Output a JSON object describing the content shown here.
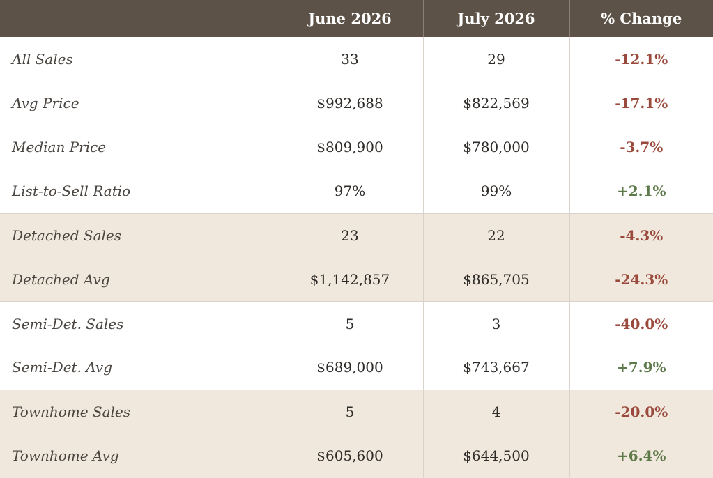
{
  "header": {
    "label": "",
    "june": "June 2026",
    "july": "July 2026",
    "change": "% Change"
  },
  "colors": {
    "negative": "#9a4a3c",
    "positive": "#5e7a4a",
    "header_bg": "#5c5247",
    "shaded_bg": "#f0e8dc"
  },
  "groups": [
    {
      "shaded": false,
      "rows": [
        {
          "label": "All Sales",
          "june": "33",
          "july": "29",
          "change": "-12.1%",
          "direction": "negative"
        },
        {
          "label": "Avg Price",
          "june": "$992,688",
          "july": "$822,569",
          "change": "-17.1%",
          "direction": "negative"
        },
        {
          "label": "Median Price",
          "june": "$809,900",
          "july": "$780,000",
          "change": "-3.7%",
          "direction": "negative"
        },
        {
          "label": "List-to-Sell Ratio",
          "june": "97%",
          "july": "99%",
          "change": "+2.1%",
          "direction": "positive"
        }
      ]
    },
    {
      "shaded": true,
      "rows": [
        {
          "label": "Detached Sales",
          "june": "23",
          "july": "22",
          "change": "-4.3%",
          "direction": "negative"
        },
        {
          "label": "Detached Avg",
          "june": "$1,142,857",
          "july": "$865,705",
          "change": "-24.3%",
          "direction": "negative"
        }
      ]
    },
    {
      "shaded": false,
      "rows": [
        {
          "label": "Semi-Det. Sales",
          "june": "5",
          "july": "3",
          "change": "-40.0%",
          "direction": "negative"
        },
        {
          "label": "Semi-Det. Avg",
          "june": "$689,000",
          "july": "$743,667",
          "change": "+7.9%",
          "direction": "positive"
        }
      ]
    },
    {
      "shaded": true,
      "rows": [
        {
          "label": "Townhome Sales",
          "june": "5",
          "july": "4",
          "change": "-20.0%",
          "direction": "negative"
        },
        {
          "label": "Townhome Avg",
          "june": "$605,600",
          "july": "$644,500",
          "change": "+6.4%",
          "direction": "positive"
        }
      ]
    }
  ]
}
